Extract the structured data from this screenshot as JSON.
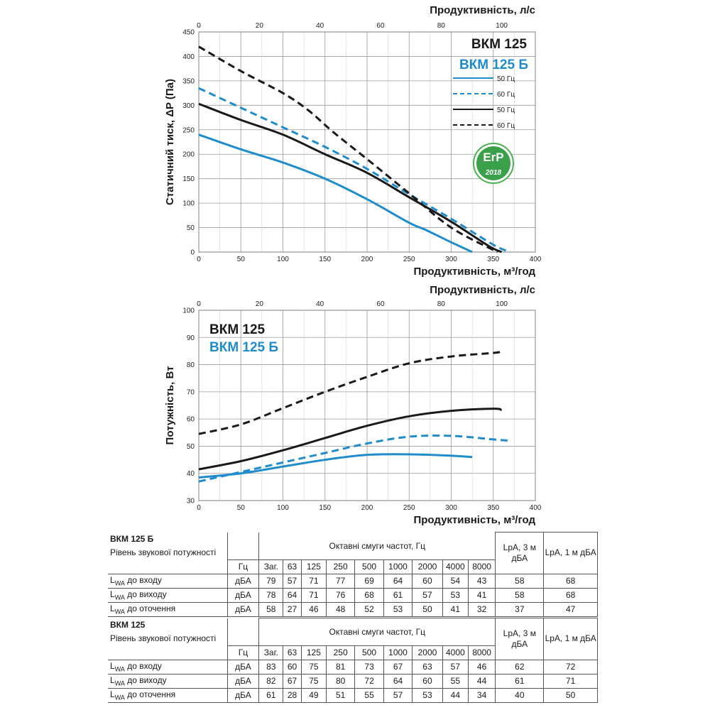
{
  "chart_data": [
    {
      "type": "line",
      "title": "",
      "xlabel": "Продуктивність, м³/год",
      "x2label": "Продуктивність, л/с",
      "ylabel": "Статичний тиск, ΔP (Па)",
      "xlim": [
        0,
        400
      ],
      "ylim": [
        0,
        450
      ],
      "x2lim": [
        0,
        111.1
      ],
      "xticks": [
        0,
        50,
        100,
        150,
        200,
        250,
        300,
        350,
        400
      ],
      "yticks": [
        0,
        50,
        100,
        150,
        200,
        250,
        300,
        350,
        400,
        450
      ],
      "x2ticks": [
        0,
        20,
        40,
        60,
        80,
        100
      ],
      "model_labels": [
        "ВКМ 125",
        "ВКМ 125 Б"
      ],
      "legend": [
        "50 Гц",
        "60 Гц",
        "50 Гц",
        "60 Гц"
      ],
      "series": [
        {
          "name": "ВКМ 125 Б 50 Гц",
          "color": "#1f8ccb",
          "dash": false,
          "x": [
            0,
            50,
            100,
            150,
            200,
            250,
            270,
            300,
            325
          ],
          "y": [
            240,
            210,
            183,
            150,
            108,
            60,
            45,
            20,
            0
          ]
        },
        {
          "name": "ВКМ 125 Б 60 Гц",
          "color": "#1f8ccb",
          "dash": true,
          "x": [
            0,
            50,
            100,
            150,
            200,
            250,
            300,
            350,
            370
          ],
          "y": [
            335,
            295,
            255,
            215,
            170,
            118,
            68,
            15,
            0
          ]
        },
        {
          "name": "ВКМ 125 50 Гц",
          "color": "#1a1a1a",
          "dash": false,
          "x": [
            0,
            50,
            100,
            150,
            200,
            250,
            300,
            345,
            360
          ],
          "y": [
            303,
            270,
            240,
            200,
            162,
            112,
            62,
            12,
            0
          ]
        },
        {
          "name": "ВКМ 125 60 Гц",
          "color": "#1a1a1a",
          "dash": true,
          "x": [
            0,
            50,
            100,
            130,
            160,
            200,
            250,
            300,
            355
          ],
          "y": [
            420,
            370,
            325,
            290,
            245,
            190,
            120,
            50,
            0
          ]
        }
      ]
    },
    {
      "type": "line",
      "title": "",
      "xlabel": "Продуктивність, м³/год",
      "x2label": "Продуктивність, л/с",
      "ylabel": "Потужність, Вт",
      "xlim": [
        0,
        400
      ],
      "ylim": [
        30,
        100
      ],
      "x2lim": [
        0,
        111.1
      ],
      "xticks": [
        0,
        50,
        100,
        150,
        200,
        250,
        300,
        350,
        400
      ],
      "yticks": [
        30,
        40,
        50,
        60,
        70,
        80,
        90,
        100
      ],
      "x2ticks": [
        0,
        20,
        40,
        60,
        80,
        100
      ],
      "model_labels": [
        "ВКМ 125",
        "ВКМ 125 Б"
      ],
      "series": [
        {
          "name": "ВКМ 125 60 Гц",
          "color": "#1a1a1a",
          "dash": true,
          "x": [
            0,
            50,
            100,
            150,
            200,
            250,
            300,
            350,
            360
          ],
          "y": [
            54.5,
            58,
            64,
            70,
            75.5,
            80.5,
            83,
            84.3,
            84.8
          ]
        },
        {
          "name": "ВКМ 125 50 Гц",
          "color": "#1a1a1a",
          "dash": false,
          "x": [
            0,
            50,
            100,
            150,
            200,
            250,
            300,
            350,
            360
          ],
          "y": [
            41.5,
            44.5,
            48.5,
            53,
            57.5,
            61,
            63,
            63.8,
            63.3
          ]
        },
        {
          "name": "ВКМ 125 Б 60 Гц",
          "color": "#1f8ccb",
          "dash": true,
          "x": [
            0,
            50,
            100,
            150,
            200,
            250,
            300,
            350,
            370
          ],
          "y": [
            37,
            40.5,
            44,
            47.5,
            51,
            53.5,
            53.8,
            52.5,
            52
          ]
        },
        {
          "name": "ВКМ 125 Б 50 Гц",
          "color": "#1f8ccb",
          "dash": false,
          "x": [
            0,
            50,
            100,
            150,
            200,
            250,
            300,
            325
          ],
          "y": [
            38.5,
            40,
            42.5,
            45,
            46.8,
            47,
            46.5,
            46
          ]
        }
      ]
    }
  ],
  "badge": {
    "text": "ErP",
    "year": "2018"
  },
  "tables": [
    {
      "model": "ВКМ 125 Б",
      "subtitle": "Рівень звукової потужності",
      "bands_title": "Октавні смуги частот, Гц",
      "lpa3": "LpA, 3 м дБА",
      "lpa1": "LpA, 1 м дБА",
      "hz_label": "Гц",
      "headers": [
        "Заг.",
        "63",
        "125",
        "250",
        "500",
        "1000",
        "2000",
        "4000",
        "8000"
      ],
      "rows": [
        {
          "label": "до входу",
          "unit": "дБА",
          "values": [
            "79",
            "57",
            "71",
            "77",
            "69",
            "64",
            "60",
            "54",
            "43"
          ],
          "lpa3": "58",
          "lpa1": "68"
        },
        {
          "label": "до виходу",
          "unit": "дБА",
          "values": [
            "78",
            "64",
            "71",
            "76",
            "68",
            "61",
            "57",
            "53",
            "41"
          ],
          "lpa3": "58",
          "lpa1": "68"
        },
        {
          "label": "до оточення",
          "unit": "дБА",
          "values": [
            "58",
            "27",
            "46",
            "48",
            "52",
            "53",
            "50",
            "41",
            "32"
          ],
          "lpa3": "37",
          "lpa1": "47"
        }
      ]
    },
    {
      "model": "ВКМ 125",
      "subtitle": "Рівень звукової потужності",
      "bands_title": "Октавні смуги частот, Гц",
      "lpa3": "LpA, 3 м дБА",
      "lpa1": "LpA, 1 м дБА",
      "hz_label": "Гц",
      "headers": [
        "Заг.",
        "63",
        "125",
        "250",
        "500",
        "1000",
        "2000",
        "4000",
        "8000"
      ],
      "rows": [
        {
          "label": "до входу",
          "unit": "дБА",
          "values": [
            "83",
            "60",
            "75",
            "81",
            "73",
            "67",
            "63",
            "57",
            "46"
          ],
          "lpa3": "62",
          "lpa1": "72"
        },
        {
          "label": "до виходу",
          "unit": "дБА",
          "values": [
            "82",
            "67",
            "75",
            "80",
            "72",
            "64",
            "60",
            "55",
            "44"
          ],
          "lpa3": "61",
          "lpa1": "71"
        },
        {
          "label": "до оточення",
          "unit": "дБА",
          "values": [
            "61",
            "28",
            "49",
            "51",
            "55",
            "57",
            "53",
            "44",
            "34"
          ],
          "lpa3": "40",
          "lpa1": "50"
        }
      ]
    }
  ],
  "lwa_prefix": "L",
  "lwa_sub": "WA"
}
